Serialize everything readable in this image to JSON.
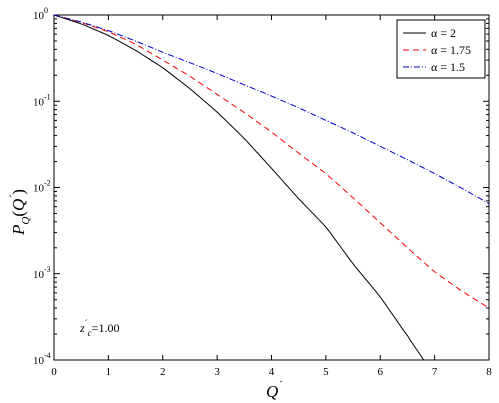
{
  "chart_data": {
    "type": "line",
    "x_scale": "linear",
    "y_scale": "log",
    "xlim": [
      0,
      8
    ],
    "ylim": [
      0.0001,
      1
    ],
    "x_ticks": [
      0,
      1,
      2,
      3,
      4,
      5,
      6,
      7,
      8
    ],
    "y_ticks": [
      {
        "value": 1,
        "base": "10",
        "exp": "0"
      },
      {
        "value": 0.1,
        "base": "10",
        "exp": "-1"
      },
      {
        "value": 0.01,
        "base": "10",
        "exp": "-2"
      },
      {
        "value": 0.001,
        "base": "10",
        "exp": "-3"
      },
      {
        "value": 0.0001,
        "base": "10",
        "exp": "-4"
      }
    ],
    "xlabel": "Q",
    "xlabel_prime": "´",
    "ylabel": {
      "main": "P",
      "sub": "Q",
      "paren_open": "(",
      "arg": "Q",
      "prime": "´",
      "paren_close": ")"
    },
    "annotation": {
      "var": "z",
      "prime": "´",
      "sub": "c",
      "eq": "=1.00"
    },
    "legend_position": "top-right",
    "series": [
      {
        "name": "α = 2",
        "color": "#000000",
        "style": "solid",
        "x": [
          0,
          0.5,
          1,
          1.5,
          2,
          2.5,
          3,
          3.5,
          4,
          4.5,
          5,
          5.5,
          6,
          6.5,
          6.8
        ],
        "y": [
          1.0,
          0.79,
          0.58,
          0.39,
          0.245,
          0.14,
          0.075,
          0.037,
          0.0167,
          0.0074,
          0.0035,
          0.0013,
          0.00054,
          0.00019,
          0.0001
        ]
      },
      {
        "name": "α = 1.75",
        "color": "#ff0000",
        "style": "dashed",
        "x": [
          0,
          0.5,
          1,
          1.5,
          2,
          2.5,
          3,
          3.5,
          4,
          4.5,
          5,
          5.5,
          6,
          6.5,
          7,
          7.5,
          8
        ],
        "y": [
          1.0,
          0.82,
          0.64,
          0.46,
          0.3,
          0.195,
          0.12,
          0.074,
          0.044,
          0.025,
          0.0145,
          0.0076,
          0.0039,
          0.002,
          0.00105,
          0.00063,
          0.0004
        ]
      },
      {
        "name": "α = 1.5",
        "color": "#0000cc",
        "style": "dashdot",
        "x": [
          0,
          0.5,
          1,
          1.5,
          2,
          2.5,
          3,
          3.5,
          4,
          4.5,
          5,
          5.5,
          6,
          6.5,
          7,
          7.5,
          8
        ],
        "y": [
          1.0,
          0.83,
          0.66,
          0.5,
          0.37,
          0.28,
          0.21,
          0.155,
          0.115,
          0.084,
          0.06,
          0.043,
          0.03,
          0.021,
          0.0145,
          0.0098,
          0.0065
        ]
      }
    ]
  }
}
